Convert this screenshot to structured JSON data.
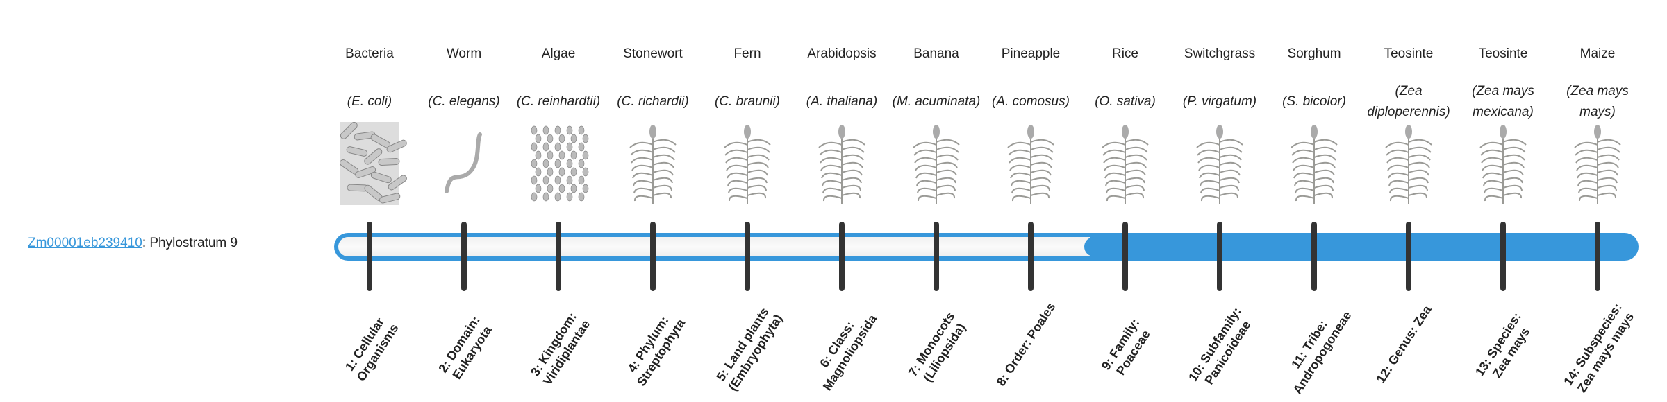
{
  "gene": {
    "id": "Zm00001eb239410",
    "separator": ": ",
    "label": "Phylostratum 9"
  },
  "phylostratum": 9,
  "colors": {
    "accent": "#3797db",
    "tick": "#333333",
    "track": "#f4f4f4"
  },
  "organisms": [
    {
      "common": "Bacteria",
      "species": "(E. coli)",
      "stratum": "1: Cellular Organisms",
      "icon": "bacteria-illustration"
    },
    {
      "common": "Worm",
      "species": "(C. elegans)",
      "stratum": "2: Domain: Eukaryota",
      "icon": "worm-illustration"
    },
    {
      "common": "Algae",
      "species": "(C. reinhardtii)",
      "stratum": "3: Kingdom: Viridiplantae",
      "icon": "algae-illustration"
    },
    {
      "common": "Stonewort",
      "species": "(C. richardii)",
      "stratum": "4: Phylum: Streptophyta",
      "icon": "stonewort-illustration"
    },
    {
      "common": "Fern",
      "species": "(C. braunii)",
      "stratum": "5: Land plants (Embryophyta)",
      "icon": "fern-illustration"
    },
    {
      "common": "Arabidopsis",
      "species": "(A. thaliana)",
      "stratum": "6: Class: Magnoliopsida",
      "icon": "arabidopsis-illustration"
    },
    {
      "common": "Banana",
      "species": "(M. acuminata)",
      "stratum": "7: Monocots (Liliopsida)",
      "icon": "banana-illustration"
    },
    {
      "common": "Pineapple",
      "species": "(A. comosus)",
      "stratum": "8: Order: Poales",
      "icon": "pineapple-illustration"
    },
    {
      "common": "Rice",
      "species": "(O. sativa)",
      "stratum": "9: Family: Poaceae",
      "icon": "rice-illustration"
    },
    {
      "common": "Switchgrass",
      "species": "(P. virgatum)",
      "stratum": "10: Subfamily: Panicoideae",
      "icon": "switchgrass-illustration"
    },
    {
      "common": "Sorghum",
      "species": "(S. bicolor)",
      "stratum": "11: Tribe: Andropogoneae",
      "icon": "sorghum-illustration"
    },
    {
      "common": "Teosinte",
      "species": "(Zea diploperennis)",
      "stratum": "12: Genus: Zea",
      "icon": "teosinte-illustration"
    },
    {
      "common": "Teosinte",
      "species": "(Zea mays mexicana)",
      "stratum": "13: Species: Zea mays",
      "icon": "teosinte-illustration"
    },
    {
      "common": "Maize",
      "species": "(Zea mays mays)",
      "stratum": "14: Subspecies: Zea mays mays",
      "icon": "maize-illustration"
    }
  ]
}
